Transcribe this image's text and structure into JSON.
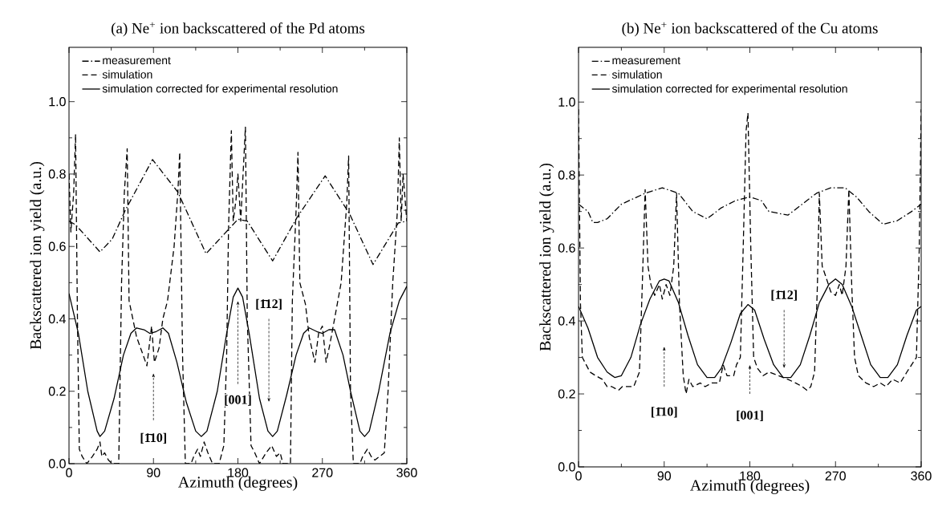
{
  "chart_data": [
    {
      "type": "line",
      "title": "(a) Ne$^{+}$ ion backscattered of the Pd atoms",
      "xlabel": "Azimuth (degrees)",
      "ylabel": "Backscattered ion yield (a.u.)",
      "xlim": [
        0,
        360
      ],
      "ylim": [
        0,
        1.15
      ],
      "xticks": [
        0,
        90,
        180,
        270,
        360
      ],
      "yticks": [
        {
          "value": 0,
          "label": "0.0"
        },
        {
          "value": 0.2,
          "label": "0.2"
        },
        {
          "value": 0.4,
          "label": "0.4"
        },
        {
          "value": 0.6,
          "label": "0.6"
        },
        {
          "value": 0.8,
          "label": "0.8"
        },
        {
          "value": 1.0,
          "label": "1.0"
        }
      ],
      "legend": "top left",
      "annotations": [
        "[1̄10]",
        "[001]",
        "[1̄12]"
      ],
      "series": [
        {
          "name": "measurement",
          "color": "#000000",
          "line_style": "dashdot",
          "x": [
            0,
            7,
            33,
            46,
            60,
            89,
            116,
            146,
            171,
            180,
            190,
            217,
            243,
            273,
            299,
            324,
            351,
            360
          ],
          "values": [
            0.67,
            0.66,
            0.585,
            0.62,
            0.7,
            0.84,
            0.75,
            0.58,
            0.65,
            0.675,
            0.67,
            0.56,
            0.68,
            0.795,
            0.69,
            0.55,
            0.665,
            0.67
          ]
        },
        {
          "name": "simulation",
          "color": "#000000",
          "line_style": "dashed",
          "x": [
            0,
            2,
            5,
            7,
            9,
            11,
            14,
            19,
            25,
            30,
            33,
            35,
            38,
            42,
            46,
            53,
            56,
            59,
            62,
            64,
            68,
            72,
            79,
            83,
            88,
            91,
            96,
            100,
            105,
            112,
            116,
            118,
            121,
            124,
            130,
            133,
            137,
            140,
            144,
            148,
            153,
            160,
            165,
            168,
            170,
            173,
            175,
            178,
            180,
            183,
            188,
            190,
            194,
            198,
            203,
            210,
            216,
            221,
            225,
            228,
            236,
            238,
            242,
            244,
            246,
            252,
            256,
            262,
            266,
            270,
            274,
            278,
            283,
            290,
            296,
            298,
            300,
            303,
            310,
            313,
            318,
            322,
            326,
            331,
            336,
            340,
            345,
            350,
            352,
            354,
            356,
            360
          ],
          "values": [
            0.8,
            0.64,
            0.75,
            0.91,
            0.4,
            0.04,
            0.02,
            0.0,
            0.02,
            0.04,
            0.06,
            0.02,
            0.03,
            0.01,
            0.0,
            0.0,
            0.5,
            0.75,
            0.87,
            0.45,
            0.4,
            0.35,
            0.3,
            0.27,
            0.38,
            0.28,
            0.32,
            0.4,
            0.45,
            0.6,
            0.75,
            0.86,
            0.3,
            0.0,
            0.0,
            0.02,
            0.04,
            0.02,
            0.06,
            0.03,
            0.0,
            0.0,
            0.05,
            0.3,
            0.65,
            0.92,
            0.67,
            0.73,
            0.8,
            0.67,
            0.93,
            0.4,
            0.05,
            0.03,
            0.0,
            0.03,
            0.05,
            0.02,
            0.03,
            0.0,
            0.0,
            0.45,
            0.7,
            0.86,
            0.5,
            0.44,
            0.35,
            0.28,
            0.36,
            0.38,
            0.28,
            0.33,
            0.4,
            0.5,
            0.72,
            0.85,
            0.2,
            0.0,
            0.0,
            0.02,
            0.04,
            0.02,
            0.01,
            0.02,
            0.03,
            0.2,
            0.5,
            0.7,
            0.9,
            0.67,
            0.8,
            0.67
          ]
        },
        {
          "name": "simulation corrected for experimental resolution",
          "color": "#000000",
          "line_style": "solid",
          "x": [
            0,
            10,
            20,
            30,
            33,
            38,
            48,
            58,
            66,
            72,
            80,
            86,
            93,
            100,
            106,
            115,
            125,
            135,
            141,
            147,
            158,
            168,
            175,
            180,
            185,
            192,
            203,
            212,
            217,
            222,
            232,
            242,
            250,
            256,
            264,
            270,
            277,
            283,
            292,
            300,
            310,
            315,
            320,
            330,
            342,
            352,
            360
          ],
          "values": [
            0.47,
            0.36,
            0.2,
            0.09,
            0.075,
            0.09,
            0.18,
            0.3,
            0.36,
            0.375,
            0.37,
            0.36,
            0.365,
            0.375,
            0.36,
            0.28,
            0.17,
            0.09,
            0.075,
            0.09,
            0.2,
            0.36,
            0.46,
            0.485,
            0.46,
            0.36,
            0.18,
            0.09,
            0.075,
            0.09,
            0.19,
            0.3,
            0.36,
            0.375,
            0.365,
            0.36,
            0.37,
            0.37,
            0.3,
            0.2,
            0.09,
            0.075,
            0.09,
            0.2,
            0.36,
            0.45,
            0.49
          ]
        }
      ]
    },
    {
      "type": "line",
      "title": "(b) Ne$^{+}$ ion backscattered of the Cu atoms",
      "xlabel": "Azimuth (degrees)",
      "ylabel": "Backscattered ion yield (a.u.)",
      "xlim": [
        0,
        360
      ],
      "ylim": [
        0,
        1.15
      ],
      "xticks": [
        0,
        90,
        180,
        270,
        360
      ],
      "yticks": [
        {
          "value": 0,
          "label": "0.0"
        },
        {
          "value": 0.2,
          "label": "0.2"
        },
        {
          "value": 0.4,
          "label": "0.4"
        },
        {
          "value": 0.6,
          "label": "0.6"
        },
        {
          "value": 0.8,
          "label": "0.8"
        },
        {
          "value": 1.0,
          "label": "1.0"
        }
      ],
      "legend": "top left",
      "annotations": [
        "[1̄10]",
        "[001]",
        "[1̄12]"
      ],
      "series": [
        {
          "name": "measurement",
          "color": "#000000",
          "line_style": "dashdot",
          "x": [
            0,
            10,
            15,
            20,
            30,
            45,
            70,
            88,
            105,
            120,
            135,
            150,
            165,
            180,
            192,
            200,
            220,
            235,
            250,
            265,
            280,
            292,
            305,
            320,
            335,
            350,
            360
          ],
          "values": [
            0.72,
            0.7,
            0.67,
            0.67,
            0.68,
            0.72,
            0.75,
            0.765,
            0.75,
            0.7,
            0.68,
            0.71,
            0.73,
            0.74,
            0.73,
            0.7,
            0.69,
            0.72,
            0.75,
            0.765,
            0.765,
            0.74,
            0.7,
            0.665,
            0.675,
            0.7,
            0.72
          ]
        },
        {
          "name": "simulation",
          "color": "#000000",
          "line_style": "dashed",
          "x": [
            0,
            2,
            4,
            8,
            12,
            18,
            25,
            30,
            35,
            42,
            46,
            52,
            58,
            64,
            67,
            70,
            73,
            76,
            80,
            85,
            88,
            92,
            96,
            100,
            103,
            106,
            110,
            113,
            116,
            120,
            128,
            133,
            140,
            148,
            152,
            156,
            163,
            166,
            170,
            173,
            176,
            178,
            181,
            184,
            188,
            194,
            200,
            210,
            220,
            228,
            235,
            240,
            244,
            248,
            251,
            253,
            256,
            260,
            265,
            270,
            274,
            277,
            281,
            284,
            287,
            290,
            294,
            302,
            310,
            317,
            323,
            330,
            338,
            345,
            350,
            355,
            358,
            360
          ],
          "values": [
            0.98,
            0.45,
            0.3,
            0.28,
            0.26,
            0.25,
            0.24,
            0.22,
            0.22,
            0.21,
            0.22,
            0.22,
            0.22,
            0.26,
            0.5,
            0.76,
            0.55,
            0.5,
            0.47,
            0.5,
            0.46,
            0.5,
            0.47,
            0.55,
            0.75,
            0.45,
            0.25,
            0.2,
            0.24,
            0.22,
            0.23,
            0.22,
            0.23,
            0.23,
            0.28,
            0.25,
            0.25,
            0.28,
            0.3,
            0.6,
            0.92,
            0.97,
            0.6,
            0.3,
            0.27,
            0.25,
            0.26,
            0.25,
            0.24,
            0.23,
            0.22,
            0.21,
            0.22,
            0.26,
            0.5,
            0.75,
            0.55,
            0.52,
            0.48,
            0.47,
            0.5,
            0.47,
            0.55,
            0.76,
            0.5,
            0.3,
            0.25,
            0.23,
            0.22,
            0.23,
            0.22,
            0.24,
            0.23,
            0.26,
            0.28,
            0.3,
            0.6,
            0.98
          ]
        },
        {
          "name": "simulation corrected for experimental resolution",
          "color": "#000000",
          "line_style": "solid",
          "x": [
            0,
            10,
            20,
            30,
            38,
            45,
            55,
            65,
            75,
            85,
            90,
            95,
            105,
            115,
            125,
            135,
            143,
            150,
            160,
            170,
            178,
            185,
            195,
            205,
            215,
            223,
            233,
            243,
            253,
            263,
            270,
            277,
            287,
            297,
            307,
            317,
            325,
            335,
            345,
            355,
            360
          ],
          "values": [
            0.44,
            0.38,
            0.3,
            0.26,
            0.245,
            0.25,
            0.3,
            0.39,
            0.46,
            0.51,
            0.515,
            0.51,
            0.45,
            0.36,
            0.28,
            0.245,
            0.245,
            0.27,
            0.34,
            0.42,
            0.445,
            0.43,
            0.35,
            0.28,
            0.245,
            0.245,
            0.28,
            0.36,
            0.45,
            0.5,
            0.515,
            0.5,
            0.44,
            0.36,
            0.28,
            0.245,
            0.245,
            0.28,
            0.36,
            0.43,
            0.44
          ]
        }
      ]
    }
  ]
}
